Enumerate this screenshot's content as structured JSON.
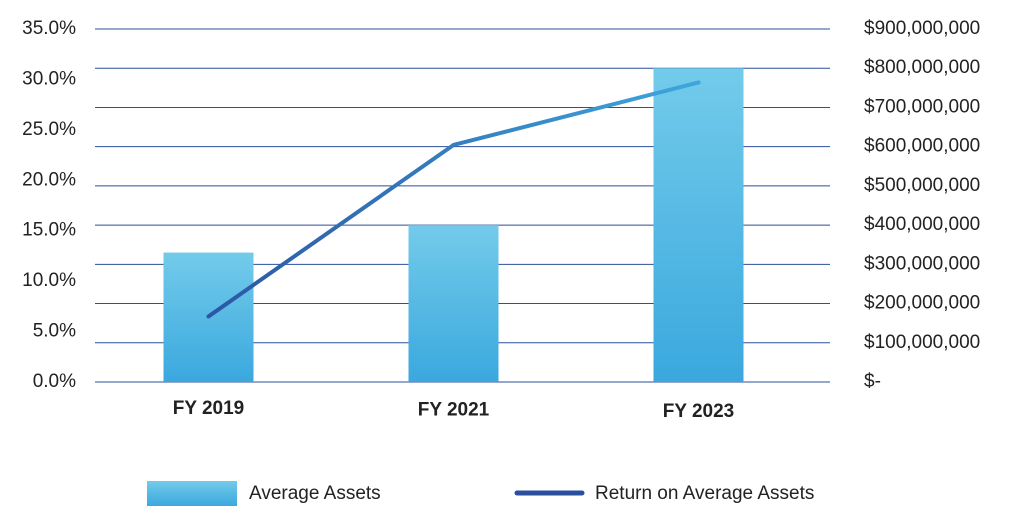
{
  "chart_data": {
    "type": "bar",
    "categories": [
      "FY 2019",
      "FY 2021",
      "FY 2023"
    ],
    "series": [
      {
        "name": "Average Assets",
        "type": "bar",
        "axis": "y2",
        "color": "#3aa8de",
        "values": [
          330000000,
          400000000,
          800000000
        ]
      },
      {
        "name": "Return on Average Assets",
        "type": "line",
        "axis": "y",
        "color": "#2a4f9e",
        "values": [
          6.5,
          23.5,
          29.7
        ]
      }
    ],
    "ylim": [
      0,
      35
    ],
    "yticks": [
      {
        "value": 0,
        "label": "0.0%"
      },
      {
        "value": 5,
        "label": "5.0%"
      },
      {
        "value": 10,
        "label": "10.0%"
      },
      {
        "value": 15,
        "label": "15.0%"
      },
      {
        "value": 20,
        "label": "20.0%"
      },
      {
        "value": 25,
        "label": "25.0%"
      },
      {
        "value": 30,
        "label": "30.0%"
      },
      {
        "value": 35,
        "label": "35.0%"
      }
    ],
    "y2lim": [
      0,
      900000000
    ],
    "y2ticks": [
      {
        "value": 0,
        "label": "$-"
      },
      {
        "value": 100000000,
        "label": "$100,000,000"
      },
      {
        "value": 200000000,
        "label": "$200,000,000"
      },
      {
        "value": 300000000,
        "label": "$300,000,000"
      },
      {
        "value": 400000000,
        "label": "$400,000,000"
      },
      {
        "value": 500000000,
        "label": "$500,000,000"
      },
      {
        "value": 600000000,
        "label": "$600,000,000"
      },
      {
        "value": 700000000,
        "label": "$700,000,000"
      },
      {
        "value": 800000000,
        "label": "$800,000,000"
      },
      {
        "value": 900000000,
        "label": "$900,000,000"
      }
    ],
    "grid": true,
    "legend": "bottom"
  }
}
